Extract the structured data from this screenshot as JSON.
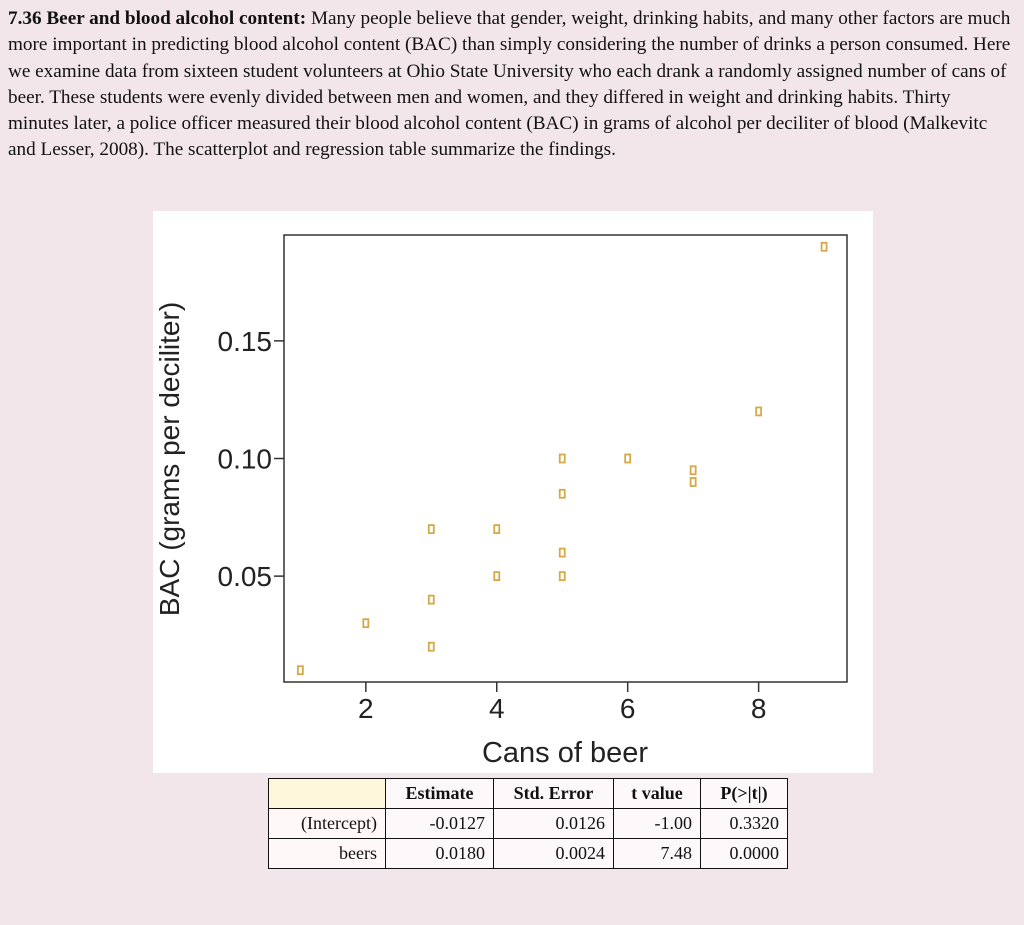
{
  "problem": {
    "title": "7.36 Beer and blood alcohol content:",
    "body": "Many people believe that gender, weight, drinking habits, and many other factors are much more important in predicting blood alcohol content (BAC) than simply considering the number of drinks a person consumed. Here we examine data from sixteen student volunteers at Ohio State University who each drank a randomly assigned number of cans of beer. These students were evenly divided between men and women, and they differed in weight and drinking habits. Thirty minutes later, a police officer measured their blood alcohol content (BAC) in grams of alcohol per deciliter of blood (Malkevitc and Lesser, 2008). The scatterplot and regression table summarize the findings."
  },
  "chart_data": {
    "type": "scatter",
    "xlabel": "Cans of beer",
    "ylabel": "BAC (grams per deciliter)",
    "xlim": [
      0.75,
      9.35
    ],
    "ylim": [
      0.005,
      0.195
    ],
    "xticks": [
      2,
      4,
      6,
      8
    ],
    "yticks": [
      0.05,
      0.1,
      0.15
    ],
    "ytick_labels": [
      "0.05",
      "0.10",
      "0.15"
    ],
    "grid": false,
    "marker_color": "#d4a94a",
    "points": [
      {
        "x": 1,
        "y": 0.01
      },
      {
        "x": 2,
        "y": 0.03
      },
      {
        "x": 3,
        "y": 0.02
      },
      {
        "x": 3,
        "y": 0.04
      },
      {
        "x": 3,
        "y": 0.07
      },
      {
        "x": 4,
        "y": 0.05
      },
      {
        "x": 4,
        "y": 0.07
      },
      {
        "x": 5,
        "y": 0.05
      },
      {
        "x": 5,
        "y": 0.06
      },
      {
        "x": 5,
        "y": 0.085
      },
      {
        "x": 5,
        "y": 0.1
      },
      {
        "x": 6,
        "y": 0.1
      },
      {
        "x": 7,
        "y": 0.09
      },
      {
        "x": 7,
        "y": 0.095
      },
      {
        "x": 8,
        "y": 0.12
      },
      {
        "x": 9,
        "y": 0.19
      }
    ]
  },
  "regression_table": {
    "headers": [
      "",
      "Estimate",
      "Std. Error",
      "t value",
      "P(>|t|)"
    ],
    "rows": [
      [
        "(Intercept)",
        "-0.0127",
        "0.0126",
        "-1.00",
        "0.3320"
      ],
      [
        "beers",
        "0.0180",
        "0.0024",
        "7.48",
        "0.0000"
      ]
    ]
  }
}
